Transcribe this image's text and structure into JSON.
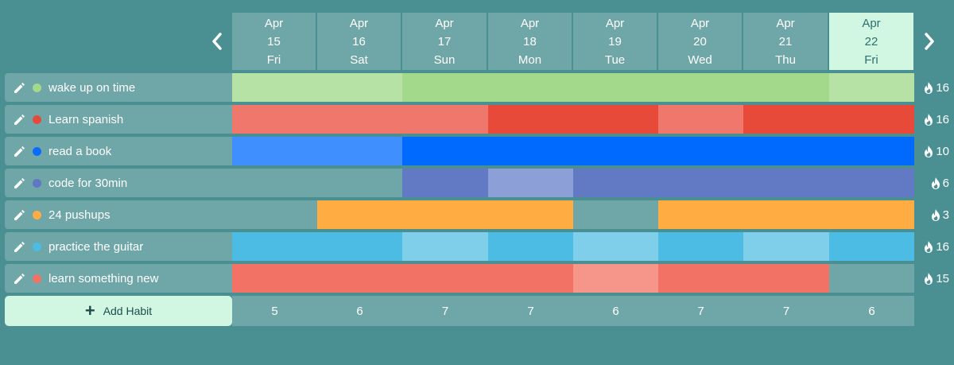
{
  "colors": {
    "background": "#4a8f92",
    "panel": "#6fa6a7",
    "today": "#d1f7e2"
  },
  "days": [
    {
      "month": "Apr",
      "date": "15",
      "weekday": "Fri",
      "today": false
    },
    {
      "month": "Apr",
      "date": "16",
      "weekday": "Sat",
      "today": false
    },
    {
      "month": "Apr",
      "date": "17",
      "weekday": "Sun",
      "today": false
    },
    {
      "month": "Apr",
      "date": "18",
      "weekday": "Mon",
      "today": false
    },
    {
      "month": "Apr",
      "date": "19",
      "weekday": "Tue",
      "today": false
    },
    {
      "month": "Apr",
      "date": "20",
      "weekday": "Wed",
      "today": false
    },
    {
      "month": "Apr",
      "date": "21",
      "weekday": "Thu",
      "today": false
    },
    {
      "month": "Apr",
      "date": "22",
      "weekday": "Fri",
      "today": true
    }
  ],
  "habits": [
    {
      "name": "wake up on time",
      "dot": "#a3d98a",
      "streak": "16",
      "cells": [
        "#b7e2a5",
        "#b7e2a5",
        "#a3d98a",
        "#a3d98a",
        "#a3d98a",
        "#a3d98a",
        "#a3d98a",
        "#b7e2a5"
      ]
    },
    {
      "name": "Learn spanish",
      "dot": "#e84a3a",
      "streak": "16",
      "cells": [
        "#f0776b",
        "#f0776b",
        "#f0776b",
        "#e84a3a",
        "#e84a3a",
        "#f0776b",
        "#e84a3a",
        "#e84a3a"
      ]
    },
    {
      "name": "read a book",
      "dot": "#0a6bff",
      "streak": "10",
      "cells": [
        "#3f8fff",
        "#3f8fff",
        "#006aff",
        "#006aff",
        "#006aff",
        "#006aff",
        "#006aff",
        "#006aff"
      ]
    },
    {
      "name": "code for 30min",
      "dot": "#5f78c4",
      "streak": "6",
      "cells": [
        null,
        null,
        "#6279c4",
        "#8c9fd6",
        "#6279c4",
        "#6279c4",
        "#6279c4",
        "#6279c4"
      ]
    },
    {
      "name": "24 pushups",
      "dot": "#ffad42",
      "streak": "3",
      "cells": [
        null,
        "#ffad42",
        "#ffad42",
        "#ffad42",
        null,
        "#ffad42",
        "#ffad42",
        "#ffad42"
      ]
    },
    {
      "name": "practice the guitar",
      "dot": "#4dbce4",
      "streak": "16",
      "cells": [
        "#4dbce4",
        "#4dbce4",
        "#7fcfea",
        "#4dbce4",
        "#7fcfea",
        "#4dbce4",
        "#7fcfea",
        "#4dbce4"
      ]
    },
    {
      "name": "learn something new",
      "dot": "#f37266",
      "streak": "15",
      "cells": [
        "#f37266",
        "#f37266",
        "#f37266",
        "#f37266",
        "#f6958a",
        "#f37266",
        "#f37266",
        null
      ]
    }
  ],
  "add_habit": {
    "label": "Add Habit"
  },
  "totals": [
    "5",
    "6",
    "7",
    "7",
    "6",
    "7",
    "7",
    "6"
  ]
}
